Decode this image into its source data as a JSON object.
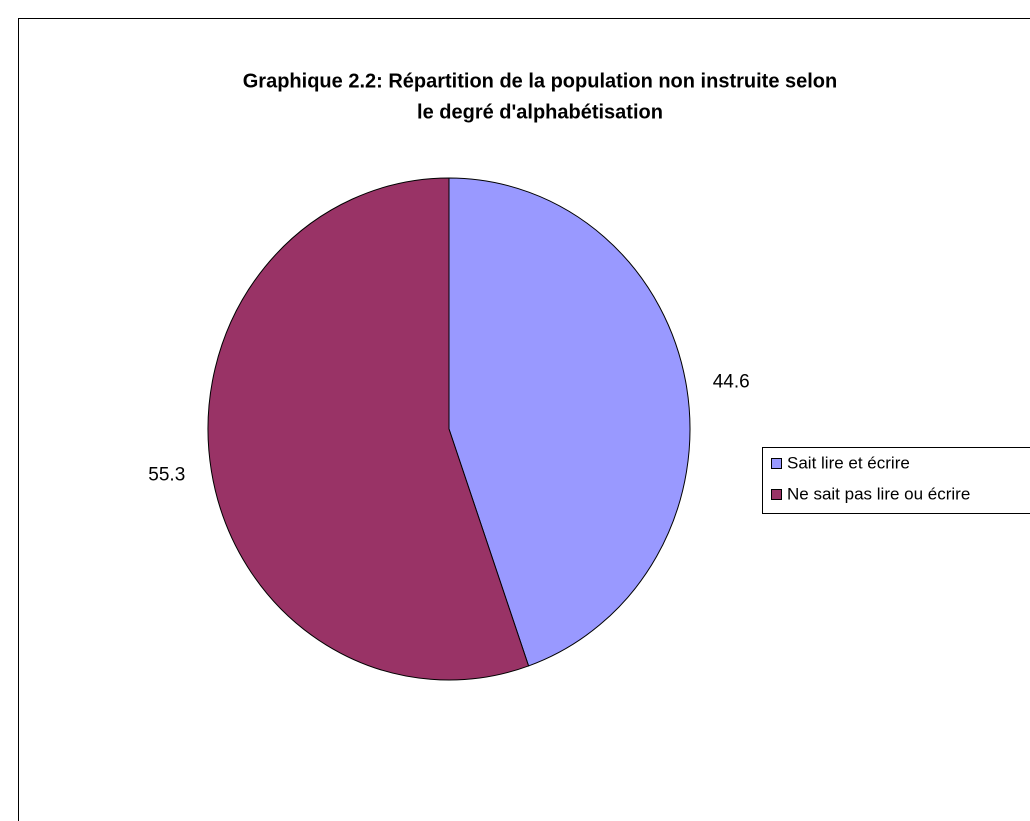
{
  "chart_data": {
    "type": "pie",
    "title": [
      "Graphique 2.2: Répartition de la population non instruite selon",
      "le degré d'alphabétisation"
    ],
    "categories": [
      "Sait lire et écrire",
      "Ne sait pas lire ou écrire"
    ],
    "values": [
      44.6,
      55.3
    ],
    "colors": [
      "#9999ff",
      "#993366"
    ],
    "legend": "right"
  }
}
